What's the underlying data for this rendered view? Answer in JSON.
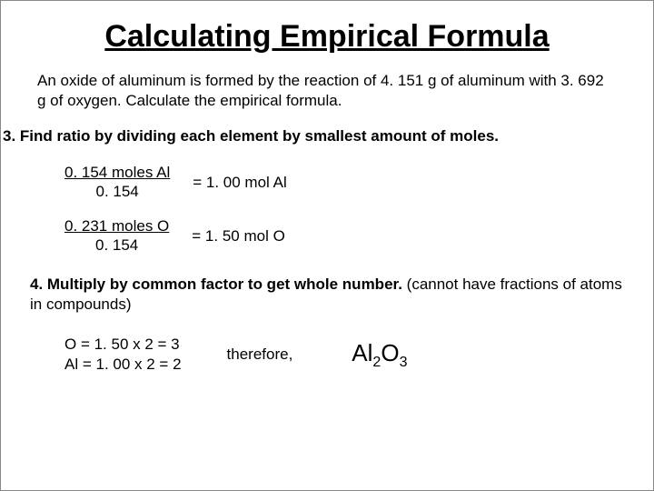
{
  "title": "Calculating Empirical Formula",
  "problem": "An oxide of aluminum is formed by the reaction of 4. 151 g of aluminum with 3. 692 g of oxygen.  Calculate the empirical formula.",
  "step3": "3.  Find ratio by dividing each element by smallest amount of moles.",
  "calc1": {
    "numerator": "0. 154 moles Al",
    "denominator": "0. 154",
    "result": "= 1. 00 mol Al"
  },
  "calc2": {
    "numerator": "0. 231 moles O",
    "denominator": "0. 154",
    "result": "= 1. 50 mol O"
  },
  "step4_bold": "4.  Multiply by common factor to get whole number.",
  "step4_rest": " (cannot have fractions of atoms in compounds)",
  "mult1": "O = 1. 50 x 2 = 3",
  "mult2": "Al = 1. 00 x 2 = 2",
  "therefore": "therefore,",
  "formula_al": "Al",
  "formula_al_sub": "2",
  "formula_o": "O",
  "formula_o_sub": "3"
}
